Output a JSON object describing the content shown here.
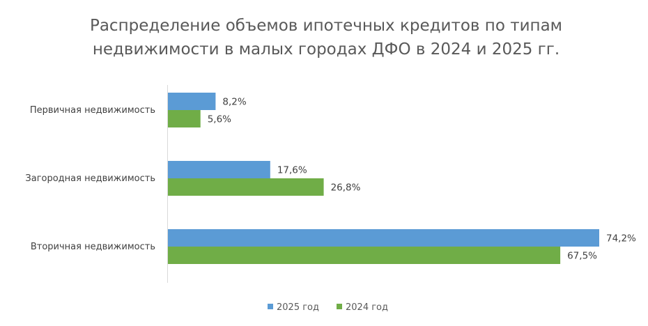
{
  "chart_data": {
    "type": "bar",
    "orientation": "horizontal",
    "title": "Распределение объемов ипотечных кредитов по типам недвижимости в малых городах ДФО в 2024 и 2025 гг.",
    "title_lines": [
      "Распределение объемов ипотечных кредитов по типам",
      "недвижимости в малых городах ДФО в 2024 и 2025 гг."
    ],
    "categories": [
      "Первичная недвижимость",
      "Загородная недвижимость",
      "Вторичная недвижимость"
    ],
    "series": [
      {
        "name": "2025 год",
        "color": "#5B9BD5",
        "values": [
          8.2,
          17.6,
          74.2
        ],
        "labels": [
          "8,2%",
          "17,6%",
          "74,2%"
        ]
      },
      {
        "name": "2024 год",
        "color": "#70AD47",
        "values": [
          5.6,
          26.8,
          67.5
        ],
        "labels": [
          "5,6%",
          "26,8%",
          "67,5%"
        ]
      }
    ],
    "xlim": [
      0,
      74.2
    ],
    "grid": false,
    "legend_position": "bottom"
  }
}
